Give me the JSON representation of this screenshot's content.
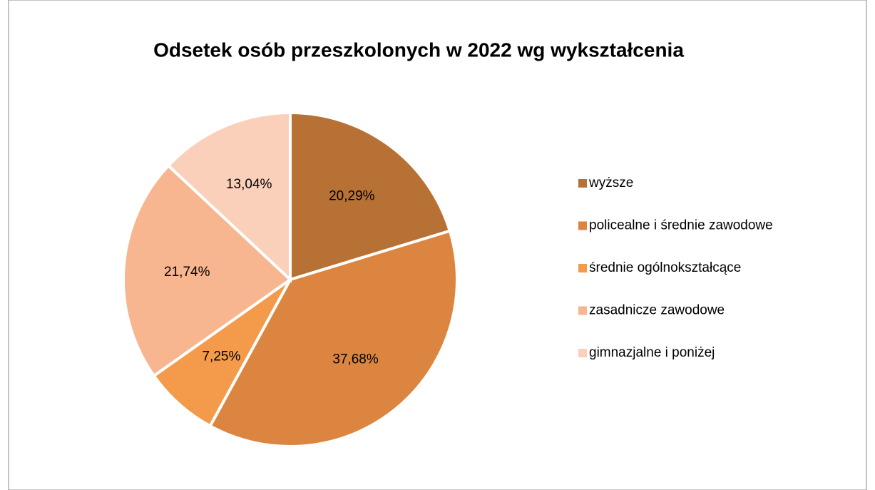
{
  "chart_data": {
    "type": "pie",
    "title": "Odsetek osób przeszkolonych w 2022 wg wykształcenia",
    "categories": [
      "wyższe",
      "policealne i średnie zawodowe",
      "średnie ogólnokształcące",
      "zasadnicze zawodowe",
      "gimnazjalne i poniżej"
    ],
    "values": [
      20.29,
      37.68,
      7.25,
      21.74,
      13.04
    ],
    "value_labels": [
      "20,29%",
      "37,68%",
      "7,25%",
      "21,74%",
      "13,04%"
    ],
    "colors": [
      "#b87134",
      "#dc8540",
      "#f39b4a",
      "#f7b590",
      "#fbd0bb"
    ],
    "legend": "right"
  }
}
